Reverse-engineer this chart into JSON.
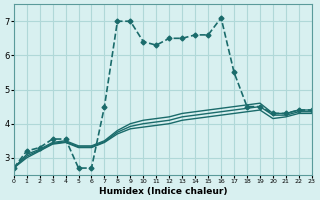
{
  "xlabel": "Humidex (Indice chaleur)",
  "bg_color": "#d8f0f0",
  "grid_color": "#b0d8d8",
  "line_color": "#1a6b6b",
  "xlim": [
    0,
    23
  ],
  "ylim": [
    2.5,
    7.5
  ],
  "yticks": [
    3,
    4,
    5,
    6,
    7
  ],
  "xticks": [
    0,
    1,
    2,
    3,
    4,
    5,
    6,
    7,
    8,
    9,
    10,
    11,
    12,
    13,
    14,
    15,
    16,
    17,
    18,
    19,
    20,
    21,
    22,
    23
  ],
  "series": [
    {
      "x": [
        0,
        1,
        2,
        3,
        4,
        5,
        6,
        7,
        8,
        9,
        10,
        11,
        12,
        13,
        14,
        15,
        16,
        17,
        18,
        19,
        20,
        21,
        22,
        23
      ],
      "y": [
        2.7,
        3.2,
        3.3,
        3.55,
        3.55,
        2.7,
        2.7,
        4.5,
        7.0,
        7.0,
        6.4,
        6.3,
        6.5,
        6.5,
        6.6,
        6.6,
        7.1,
        5.5,
        4.5,
        4.5,
        4.3,
        4.3,
        4.4,
        4.4
      ],
      "marker": "D",
      "markersize": 2.5,
      "linewidth": 1.2,
      "linestyle": "--"
    },
    {
      "x": [
        0,
        1,
        2,
        3,
        4,
        5,
        6,
        7,
        8,
        9,
        10,
        11,
        12,
        13,
        14,
        15,
        16,
        17,
        18,
        19,
        20,
        21,
        22,
        23
      ],
      "y": [
        2.7,
        3.1,
        3.25,
        3.45,
        3.5,
        3.35,
        3.35,
        3.5,
        3.8,
        4.0,
        4.1,
        4.15,
        4.2,
        4.3,
        4.35,
        4.4,
        4.45,
        4.5,
        4.55,
        4.6,
        4.3,
        4.3,
        4.4,
        4.4
      ],
      "marker": null,
      "markersize": 0,
      "linewidth": 1.0,
      "linestyle": "-"
    },
    {
      "x": [
        0,
        1,
        2,
        3,
        4,
        5,
        6,
        7,
        8,
        9,
        10,
        11,
        12,
        13,
        14,
        15,
        16,
        17,
        18,
        19,
        20,
        21,
        22,
        23
      ],
      "y": [
        2.7,
        3.0,
        3.2,
        3.4,
        3.45,
        3.3,
        3.3,
        3.45,
        3.7,
        3.85,
        3.9,
        3.95,
        4.0,
        4.1,
        4.15,
        4.2,
        4.25,
        4.3,
        4.35,
        4.4,
        4.15,
        4.2,
        4.3,
        4.3
      ],
      "marker": null,
      "markersize": 0,
      "linewidth": 1.0,
      "linestyle": "-"
    },
    {
      "x": [
        0,
        1,
        2,
        3,
        4,
        5,
        6,
        7,
        8,
        9,
        10,
        11,
        12,
        13,
        14,
        15,
        16,
        17,
        18,
        19,
        20,
        21,
        22,
        23
      ],
      "y": [
        2.7,
        3.05,
        3.22,
        3.42,
        3.47,
        3.32,
        3.32,
        3.47,
        3.75,
        3.92,
        4.0,
        4.05,
        4.1,
        4.2,
        4.25,
        4.3,
        4.35,
        4.4,
        4.45,
        4.5,
        4.25,
        4.25,
        4.35,
        4.35
      ],
      "marker": null,
      "markersize": 0,
      "linewidth": 1.0,
      "linestyle": "-"
    }
  ]
}
